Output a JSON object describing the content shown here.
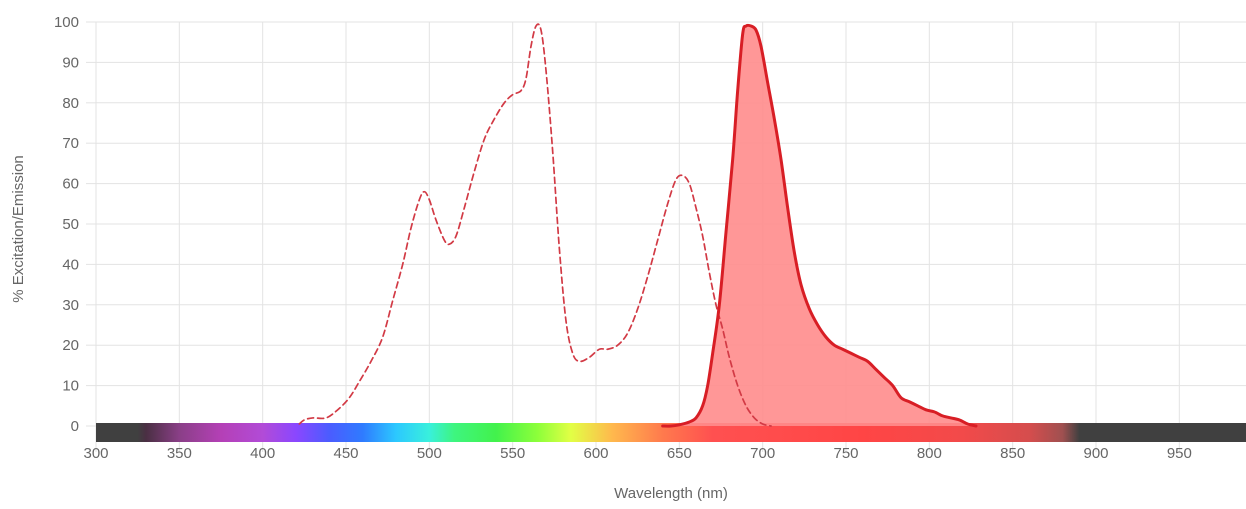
{
  "chart_data": {
    "type": "area",
    "xlabel": "Wavelength (nm)",
    "ylabel": "% Excitation/Emission",
    "xlim": [
      300,
      990
    ],
    "ylim": [
      0,
      100
    ],
    "x_ticks": [
      300,
      350,
      400,
      450,
      500,
      550,
      600,
      650,
      700,
      750,
      800,
      850,
      900,
      950
    ],
    "y_ticks": [
      0,
      10,
      20,
      30,
      40,
      50,
      60,
      70,
      80,
      90,
      100
    ],
    "grid": true,
    "legend": "none",
    "colors": {
      "excitation_line": "#d23a45",
      "emission_line": "#d81e25",
      "emission_fill": "#ff8c8c",
      "grid": "#e3e3e3",
      "tick_text": "#666666"
    },
    "series": [
      {
        "style": "dashed line",
        "points": [
          [
            422,
            0.5
          ],
          [
            425,
            1.5
          ],
          [
            430,
            2
          ],
          [
            438,
            2
          ],
          [
            445,
            4
          ],
          [
            452,
            7
          ],
          [
            458,
            11
          ],
          [
            465,
            16
          ],
          [
            472,
            22
          ],
          [
            478,
            31
          ],
          [
            484,
            40
          ],
          [
            489,
            49
          ],
          [
            494,
            56
          ],
          [
            497,
            58
          ],
          [
            500,
            56
          ],
          [
            504,
            51
          ],
          [
            509,
            46
          ],
          [
            512,
            45
          ],
          [
            516,
            47
          ],
          [
            521,
            54
          ],
          [
            527,
            63
          ],
          [
            533,
            71
          ],
          [
            539,
            76
          ],
          [
            545,
            80
          ],
          [
            550,
            82
          ],
          [
            555,
            83
          ],
          [
            558,
            86
          ],
          [
            561,
            94
          ],
          [
            564,
            99
          ],
          [
            567,
            98
          ],
          [
            570,
            88
          ],
          [
            574,
            68
          ],
          [
            578,
            44
          ],
          [
            582,
            26
          ],
          [
            586,
            18
          ],
          [
            590,
            16
          ],
          [
            596,
            17
          ],
          [
            602,
            19
          ],
          [
            607,
            19
          ],
          [
            613,
            20
          ],
          [
            619,
            23
          ],
          [
            625,
            29
          ],
          [
            631,
            37
          ],
          [
            637,
            46
          ],
          [
            643,
            55
          ],
          [
            648,
            61
          ],
          [
            652,
            62
          ],
          [
            656,
            60
          ],
          [
            660,
            54
          ],
          [
            664,
            47
          ],
          [
            668,
            38
          ],
          [
            672,
            30
          ],
          [
            676,
            24
          ],
          [
            680,
            17
          ],
          [
            685,
            10
          ],
          [
            690,
            5
          ],
          [
            695,
            2
          ],
          [
            700,
            0.5
          ],
          [
            705,
            0
          ]
        ]
      },
      {
        "style": "filled area",
        "points": [
          [
            640,
            0
          ],
          [
            645,
            0
          ],
          [
            650,
            0.3
          ],
          [
            656,
            1
          ],
          [
            660,
            2
          ],
          [
            664,
            5
          ],
          [
            667,
            10
          ],
          [
            670,
            18
          ],
          [
            674,
            30
          ],
          [
            678,
            48
          ],
          [
            682,
            66
          ],
          [
            685,
            83
          ],
          [
            688,
            97
          ],
          [
            690,
            99
          ],
          [
            693,
            99
          ],
          [
            696,
            98
          ],
          [
            699,
            94
          ],
          [
            703,
            85
          ],
          [
            707,
            76
          ],
          [
            711,
            66
          ],
          [
            715,
            54
          ],
          [
            719,
            43
          ],
          [
            723,
            35
          ],
          [
            728,
            29
          ],
          [
            733,
            25
          ],
          [
            738,
            22
          ],
          [
            743,
            20
          ],
          [
            748,
            19
          ],
          [
            753,
            18
          ],
          [
            758,
            17
          ],
          [
            763,
            16
          ],
          [
            768,
            14
          ],
          [
            773,
            12
          ],
          [
            778,
            10
          ],
          [
            783,
            7
          ],
          [
            788,
            6
          ],
          [
            793,
            5
          ],
          [
            798,
            4
          ],
          [
            803,
            3.5
          ],
          [
            808,
            2.5
          ],
          [
            813,
            2
          ],
          [
            818,
            1.5
          ],
          [
            823,
            0.5
          ],
          [
            828,
            0
          ]
        ]
      }
    ],
    "spectrum_bar": {
      "stops": [
        [
          "300",
          "#404040"
        ],
        [
          "325",
          "#404040"
        ],
        [
          "330",
          "#4a2f43"
        ],
        [
          "350",
          "#8a3f87"
        ],
        [
          "375",
          "#b440b6"
        ],
        [
          "400",
          "#b24bd7"
        ],
        [
          "420",
          "#8a47ff"
        ],
        [
          "440",
          "#4b5cff"
        ],
        [
          "460",
          "#2f7bff"
        ],
        [
          "480",
          "#2cc8ff"
        ],
        [
          "500",
          "#39f0dc"
        ],
        [
          "515",
          "#3ef57f"
        ],
        [
          "540",
          "#42f24c"
        ],
        [
          "565",
          "#8dff3a"
        ],
        [
          "585",
          "#e2ff45"
        ],
        [
          "610",
          "#ffb84d"
        ],
        [
          "640",
          "#ff7a4d"
        ],
        [
          "670",
          "#ff5050"
        ],
        [
          "700",
          "#ff4d4d"
        ],
        [
          "760",
          "#ff4545"
        ],
        [
          "820",
          "#f24a4a"
        ],
        [
          "860",
          "#d54d4d"
        ],
        [
          "880",
          "#9f5050"
        ],
        [
          "890",
          "#404040"
        ],
        [
          "990",
          "#404040"
        ]
      ]
    }
  }
}
